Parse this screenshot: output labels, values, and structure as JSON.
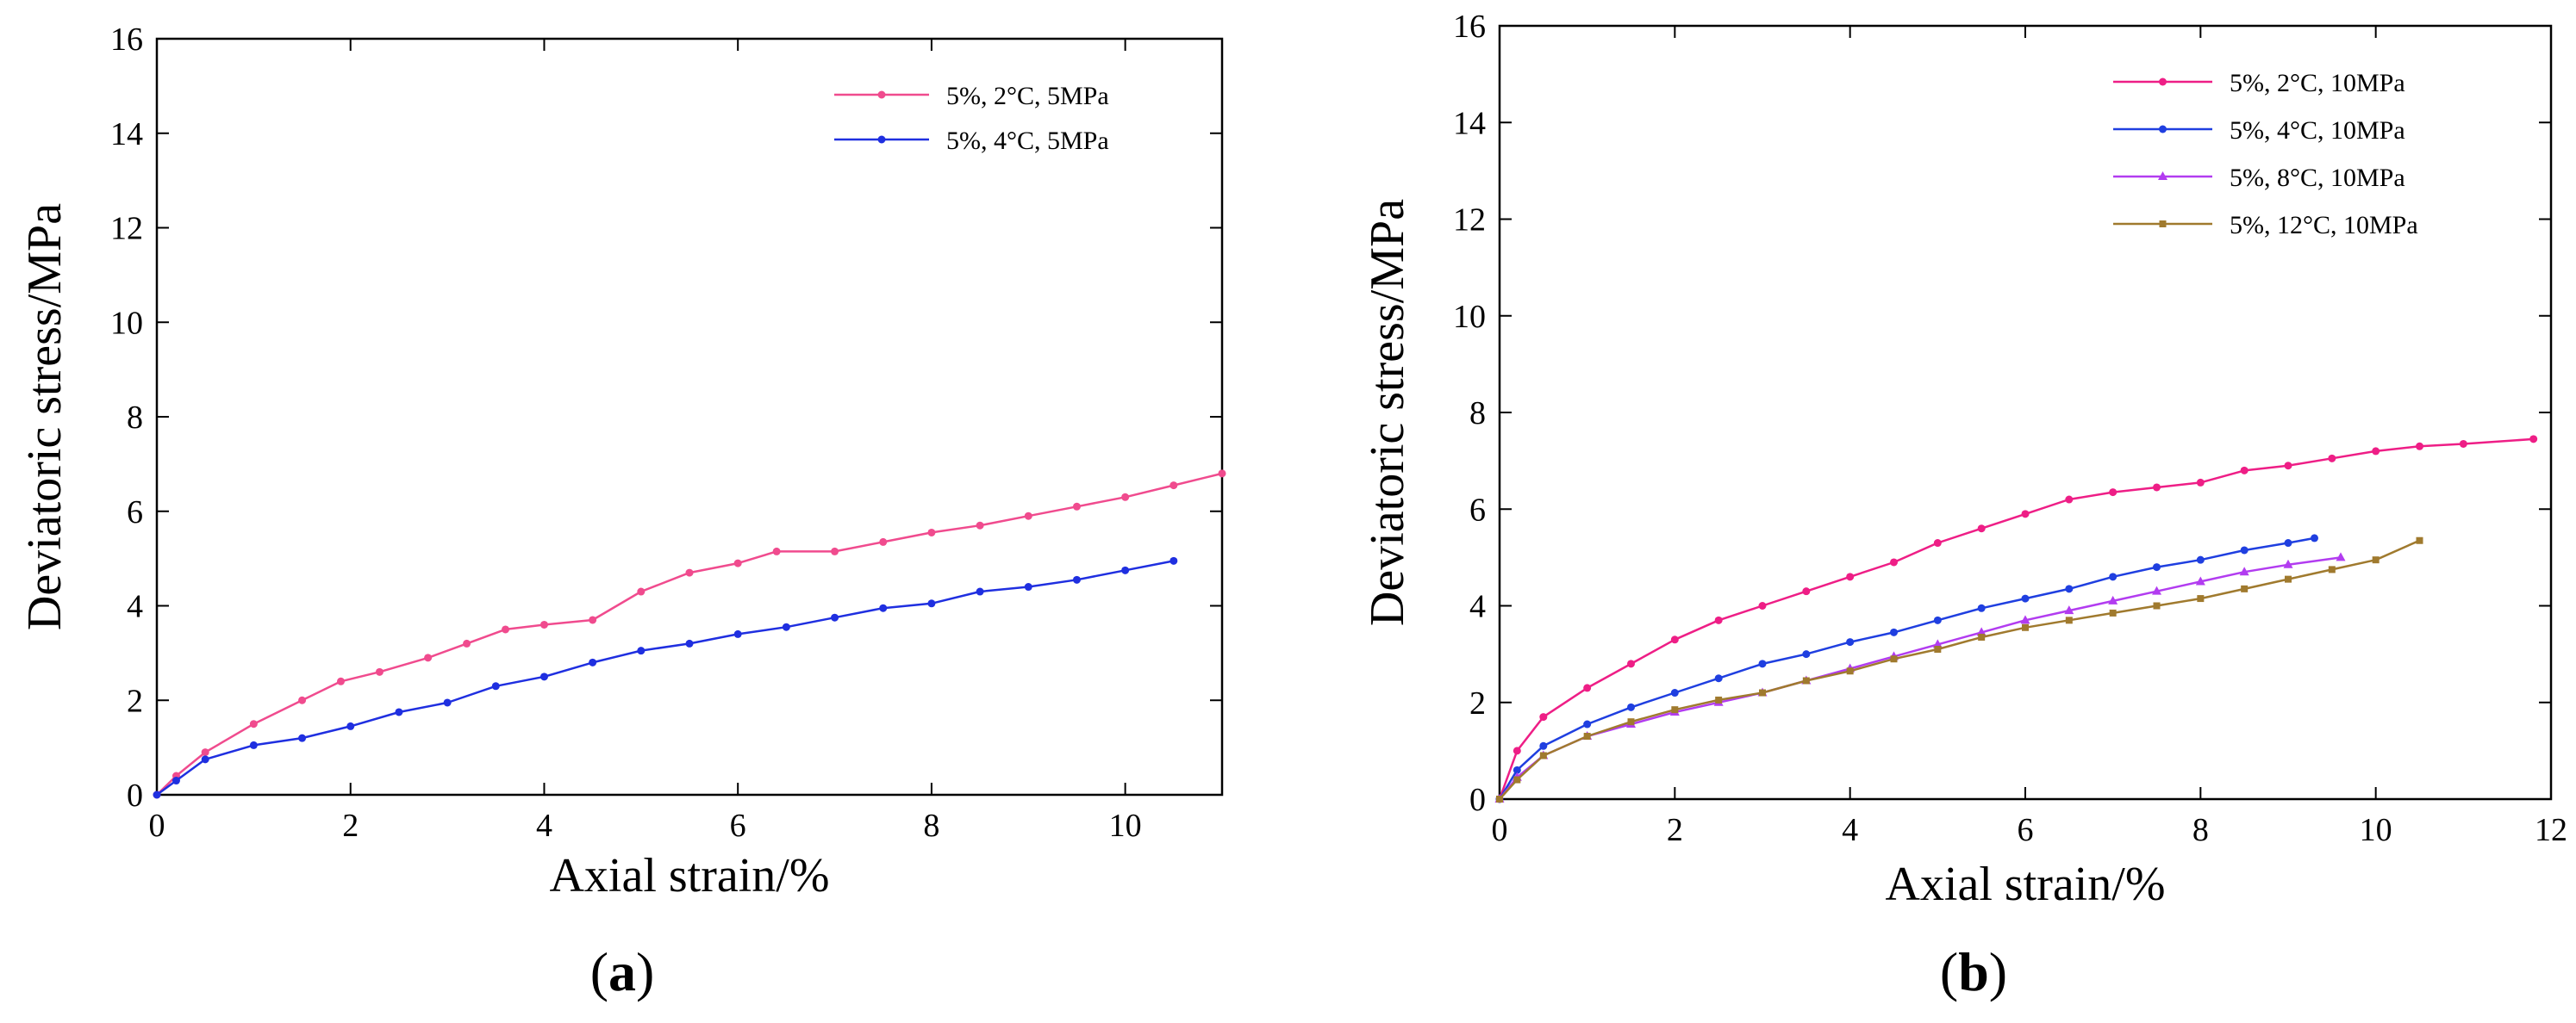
{
  "figure": {
    "panels": [
      {
        "label": "a"
      },
      {
        "label": "b"
      }
    ]
  },
  "chart_data": [
    {
      "type": "line",
      "panel": "a",
      "title": "",
      "xlabel": "Axial strain/%",
      "ylabel": "Deviatoric stress/MPa",
      "xlim": [
        0,
        11
      ],
      "ylim": [
        0,
        16
      ],
      "xticks": [
        0,
        2,
        4,
        6,
        8,
        10
      ],
      "yticks": [
        0,
        2,
        4,
        6,
        8,
        10,
        12,
        14,
        16
      ],
      "grid": false,
      "legend_position": "top-right",
      "series": [
        {
          "name": "5%, 2°C, 5MPa",
          "color": "#f04b8e",
          "marker": "circle",
          "x": [
            0,
            0.2,
            0.5,
            1.0,
            1.5,
            1.9,
            2.3,
            2.8,
            3.2,
            3.6,
            4.0,
            4.5,
            5.0,
            5.5,
            6.0,
            6.4,
            7.0,
            7.5,
            8.0,
            8.5,
            9.0,
            9.5,
            10.0,
            10.5,
            11.0
          ],
          "y": [
            0,
            0.4,
            0.9,
            1.5,
            2.0,
            2.4,
            2.6,
            2.9,
            3.2,
            3.5,
            3.6,
            3.7,
            4.3,
            4.7,
            4.9,
            5.15,
            5.15,
            5.35,
            5.55,
            5.7,
            5.9,
            6.1,
            6.3,
            6.55,
            6.8
          ]
        },
        {
          "name": "5%, 4°C, 5MPa",
          "color": "#1f2fe0",
          "marker": "circle",
          "x": [
            0,
            0.2,
            0.5,
            1.0,
            1.5,
            2.0,
            2.5,
            3.0,
            3.5,
            4.0,
            4.5,
            5.0,
            5.5,
            6.0,
            6.5,
            7.0,
            7.5,
            8.0,
            8.5,
            9.0,
            9.5,
            10.0,
            10.5
          ],
          "y": [
            0,
            0.3,
            0.75,
            1.05,
            1.2,
            1.45,
            1.75,
            1.95,
            2.3,
            2.5,
            2.8,
            3.05,
            3.2,
            3.4,
            3.55,
            3.75,
            3.95,
            4.05,
            4.3,
            4.4,
            4.55,
            4.75,
            4.95
          ]
        }
      ]
    },
    {
      "type": "line",
      "panel": "b",
      "title": "",
      "xlabel": "Axial strain/%",
      "ylabel": "Deviatoric stress/MPa",
      "xlim": [
        0,
        12
      ],
      "ylim": [
        0,
        16
      ],
      "xticks": [
        0,
        2,
        4,
        6,
        8,
        10,
        12
      ],
      "yticks": [
        0,
        2,
        4,
        6,
        8,
        10,
        12,
        14,
        16
      ],
      "grid": false,
      "legend_position": "top-right",
      "series": [
        {
          "name": "5%, 2°C, 10MPa",
          "color": "#ee1e86",
          "marker": "circle",
          "x": [
            0,
            0.2,
            0.5,
            1.0,
            1.5,
            2.0,
            2.5,
            3.0,
            3.5,
            4.0,
            4.5,
            5.0,
            5.5,
            6.0,
            6.5,
            7.0,
            7.5,
            8.0,
            8.5,
            9.0,
            9.5,
            10.0,
            10.5,
            11.0,
            11.8
          ],
          "y": [
            0,
            1.0,
            1.7,
            2.3,
            2.8,
            3.3,
            3.7,
            4.0,
            4.3,
            4.6,
            4.9,
            5.3,
            5.6,
            5.9,
            6.2,
            6.35,
            6.45,
            6.55,
            6.8,
            6.9,
            7.05,
            7.2,
            7.3,
            7.35,
            7.45
          ]
        },
        {
          "name": "5%, 4°C, 10MPa",
          "color": "#1f3fe0",
          "marker": "circle",
          "x": [
            0,
            0.2,
            0.5,
            1.0,
            1.5,
            2.0,
            2.5,
            3.0,
            3.5,
            4.0,
            4.5,
            5.0,
            5.5,
            6.0,
            6.5,
            7.0,
            7.5,
            8.0,
            8.5,
            9.0,
            9.3
          ],
          "y": [
            0,
            0.6,
            1.1,
            1.55,
            1.9,
            2.2,
            2.5,
            2.8,
            3.0,
            3.25,
            3.45,
            3.7,
            3.95,
            4.15,
            4.35,
            4.6,
            4.8,
            4.95,
            5.15,
            5.3,
            5.4
          ]
        },
        {
          "name": "5%, 8°C, 10MPa",
          "color": "#b23cf0",
          "marker": "triangle",
          "x": [
            0,
            0.2,
            0.5,
            1.0,
            1.5,
            2.0,
            2.5,
            3.0,
            3.5,
            4.0,
            4.5,
            5.0,
            5.5,
            6.0,
            6.5,
            7.0,
            7.5,
            8.0,
            8.5,
            9.0,
            9.6
          ],
          "y": [
            0,
            0.45,
            0.9,
            1.3,
            1.55,
            1.8,
            2.0,
            2.2,
            2.45,
            2.7,
            2.95,
            3.2,
            3.45,
            3.7,
            3.9,
            4.1,
            4.3,
            4.5,
            4.7,
            4.85,
            5.0
          ]
        },
        {
          "name": "5%, 12°C, 10MPa",
          "color": "#a07a2e",
          "marker": "square",
          "x": [
            0,
            0.2,
            0.5,
            1.0,
            1.5,
            2.0,
            2.5,
            3.0,
            3.5,
            4.0,
            4.5,
            5.0,
            5.5,
            6.0,
            6.5,
            7.0,
            7.5,
            8.0,
            8.5,
            9.0,
            9.5,
            10.0,
            10.5
          ],
          "y": [
            0,
            0.4,
            0.9,
            1.3,
            1.6,
            1.85,
            2.05,
            2.2,
            2.45,
            2.65,
            2.9,
            3.1,
            3.35,
            3.55,
            3.7,
            3.85,
            4.0,
            4.15,
            4.35,
            4.55,
            4.75,
            4.95,
            5.35
          ]
        }
      ]
    }
  ]
}
